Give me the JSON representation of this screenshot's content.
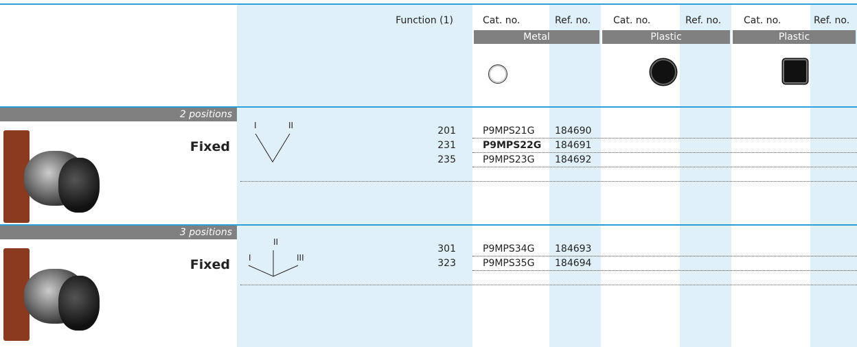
{
  "header": {
    "function": "Function (1)",
    "columns": [
      "Cat. no.",
      "Ref. no.",
      "Cat. no.",
      "Ref. no.",
      "Cat. no.",
      "Ref. no."
    ],
    "materials": [
      "Metal",
      "Plastic",
      "Plastic"
    ]
  },
  "sections": [
    {
      "title": "2 positions",
      "label": "Fixed",
      "diagram": [
        "I",
        "II"
      ],
      "rows": [
        {
          "function": "201",
          "cat": "P9MPS21G",
          "ref": "184690"
        },
        {
          "function": "231",
          "cat": "P9MPS22G",
          "ref": "184691"
        },
        {
          "function": "235",
          "cat": "P9MPS23G",
          "ref": "184692"
        }
      ]
    },
    {
      "title": "3 positions",
      "label": "Fixed",
      "diagram": [
        "II",
        "I",
        "III"
      ],
      "rows": [
        {
          "function": "301",
          "cat": "P9MPS34G",
          "ref": "184693"
        },
        {
          "function": "323",
          "cat": "P9MPS35G",
          "ref": "184694"
        }
      ]
    }
  ]
}
